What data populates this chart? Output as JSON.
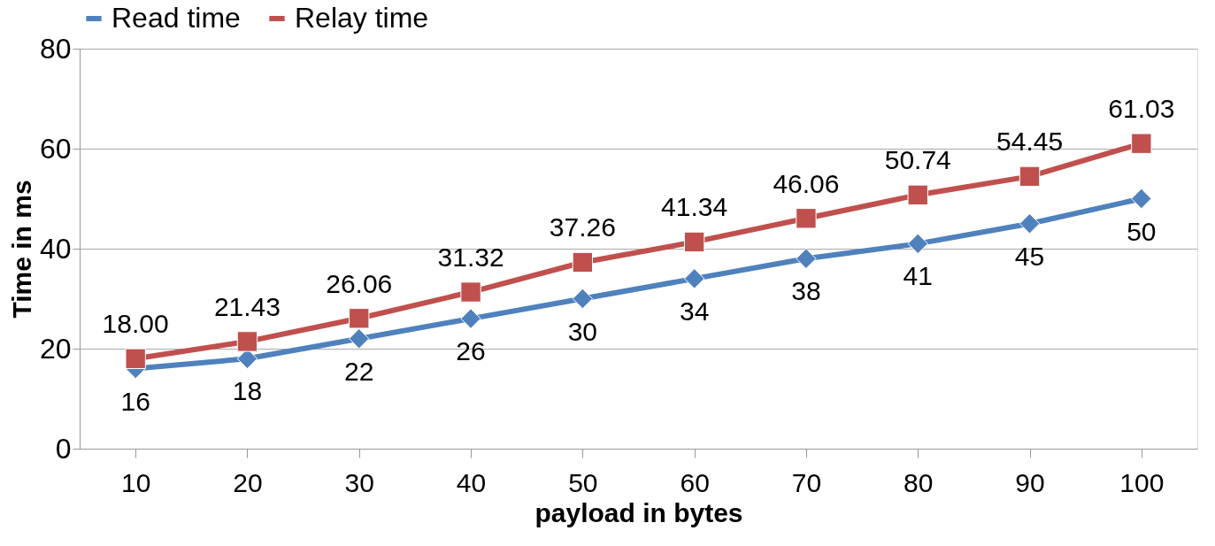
{
  "chart_data": {
    "type": "line",
    "xlabel": "payload in bytes",
    "ylabel": "Time in ms",
    "categories": [
      "10",
      "20",
      "30",
      "40",
      "50",
      "60",
      "70",
      "80",
      "90",
      "100"
    ],
    "series": [
      {
        "name": "Read time",
        "color": "#4f81bd",
        "marker": "diamond",
        "values": [
          16,
          18,
          22,
          26,
          30,
          34,
          38,
          41,
          45,
          50
        ],
        "value_labels": [
          "16",
          "18",
          "22",
          "26",
          "30",
          "34",
          "38",
          "41",
          "45",
          "50"
        ]
      },
      {
        "name": "Relay time",
        "color": "#c0504d",
        "marker": "square",
        "values": [
          18.0,
          21.43,
          26.06,
          31.32,
          37.26,
          41.34,
          46.06,
          50.74,
          54.45,
          61.03
        ],
        "value_labels": [
          "18.00",
          "21.43",
          "26.06",
          "31.32",
          "37.26",
          "41.34",
          "46.06",
          "50.74",
          "54.45",
          "61.03"
        ]
      }
    ],
    "ylim": [
      0,
      80
    ],
    "yticks": [
      0,
      20,
      40,
      60,
      80
    ],
    "grid": "y",
    "legend": "top",
    "line_style": "solid"
  }
}
